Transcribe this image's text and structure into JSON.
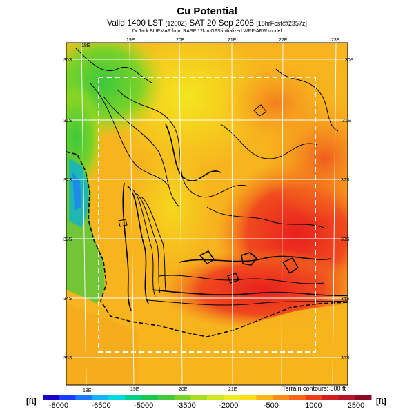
{
  "header": {
    "title": "Cu Potential",
    "subtitle_main": "Valid 1400 LST",
    "subtitle_time": "(1200Z)",
    "subtitle_date": "SAT 20 Sep 2008",
    "subtitle_fcst": "[18hrFcst@2357z]",
    "credit": "Dr.Jack BLIPMAP from RASP 12km GFS-initialized WRF-ARW model"
  },
  "map": {
    "lon_labels_top": [
      "18E",
      "19E",
      "20E",
      "21E",
      "22E",
      "23E"
    ],
    "lon_labels_bottom": [
      "18E",
      "19E",
      "20E",
      "21E"
    ],
    "lat_labels_left": [
      "30S",
      "31S",
      "32S",
      "33S",
      "34S",
      "35S"
    ],
    "lat_labels_right": [
      "30S",
      "31S",
      "32S",
      "33S",
      "34S",
      "35S"
    ],
    "terrain_note": "Terrain contours: 500 ft"
  },
  "colorbar": {
    "unit": "[ft]",
    "ticks": [
      "-8000",
      "-6500",
      "-5000",
      "-3500",
      "-2000",
      "-500",
      "1000",
      "2500"
    ],
    "colors": [
      "#1a00c8",
      "#1a3cff",
      "#1e78ff",
      "#12b4ff",
      "#00dcdc",
      "#00d28c",
      "#16c850",
      "#46c83c",
      "#78d228",
      "#aadc1e",
      "#d2e61e",
      "#f0f01e",
      "#ffdc14",
      "#ffb414",
      "#ff8c14",
      "#ff6414",
      "#f03c14",
      "#d21e1e",
      "#b41428",
      "#8c0a28"
    ]
  }
}
